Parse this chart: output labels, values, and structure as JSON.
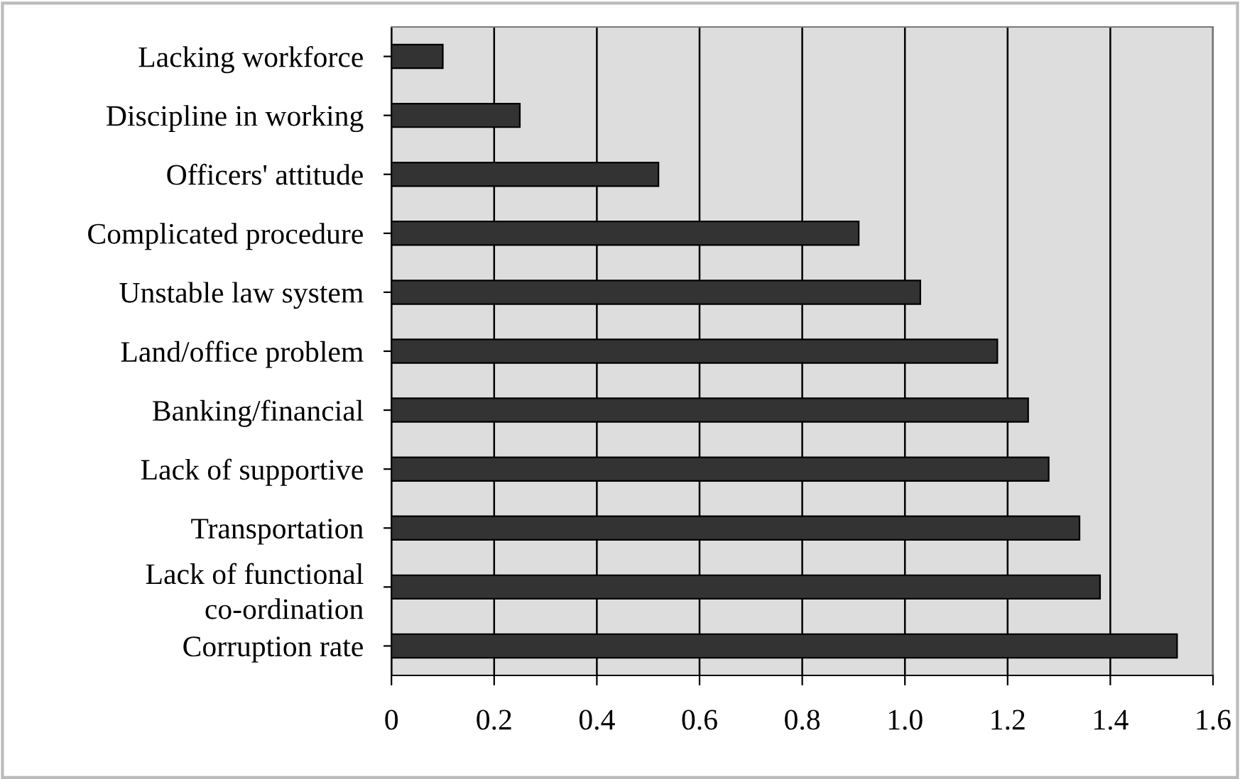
{
  "chart_data": {
    "type": "bar",
    "orientation": "horizontal",
    "categories": [
      "Lacking workforce",
      "Discipline in working",
      "Officers' attitude",
      "Complicated procedure",
      "Unstable law system",
      "Land/office problem",
      "Banking/financial",
      "Lack of supportive",
      "Transportation",
      "Lack of functional\nco-ordination",
      "Corruption rate"
    ],
    "values": [
      0.1,
      0.25,
      0.52,
      0.91,
      1.03,
      1.18,
      1.24,
      1.28,
      1.34,
      1.38,
      1.53
    ],
    "color": "#333333",
    "xlim": [
      0,
      1.6
    ],
    "xticks": [
      0,
      0.2,
      0.4,
      0.6,
      0.8,
      {
        "value": 1.0,
        "label": "1.0"
      },
      1.2,
      1.4,
      1.6
    ],
    "grid": "x"
  }
}
